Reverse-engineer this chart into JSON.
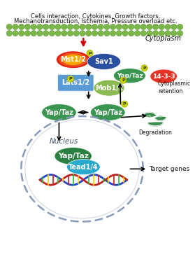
{
  "title_line1": "Cells interaction, Cytokines, Growth factors,",
  "title_line2": "Mechanotransduction, Ischemia, Pressure overload etc.",
  "cytoplasm_label": "Cytoplasm",
  "nucleus_label": "Nucleus",
  "target_genes_label": "Target genes",
  "cytoplasmic_retention_label": "Cytoplasmic\nretention",
  "degradation_label": "Degradation",
  "membrane_color": "#7ab648",
  "membrane_edge": "#4a8820",
  "mst_outer_color": "#e63325",
  "mst_mid_color": "#f06020",
  "mst_inner_color": "#f7a800",
  "sav1_color": "#2b4fa0",
  "lats_color": "#5b9bd5",
  "mob_color": "#8aba50",
  "yap_color": "#2a8040",
  "yap_color2": "#3a9550",
  "red14_color": "#e63325",
  "tead_color": "#28aad0",
  "phospho_color": "#c8d400",
  "phospho_edge": "#a0aa00",
  "arrow_color": "#111111",
  "red_arrow_color": "#cc0000",
  "degradation_color": "#2a8040",
  "nucleus_border": "#8899bb",
  "text_black": "#111111"
}
